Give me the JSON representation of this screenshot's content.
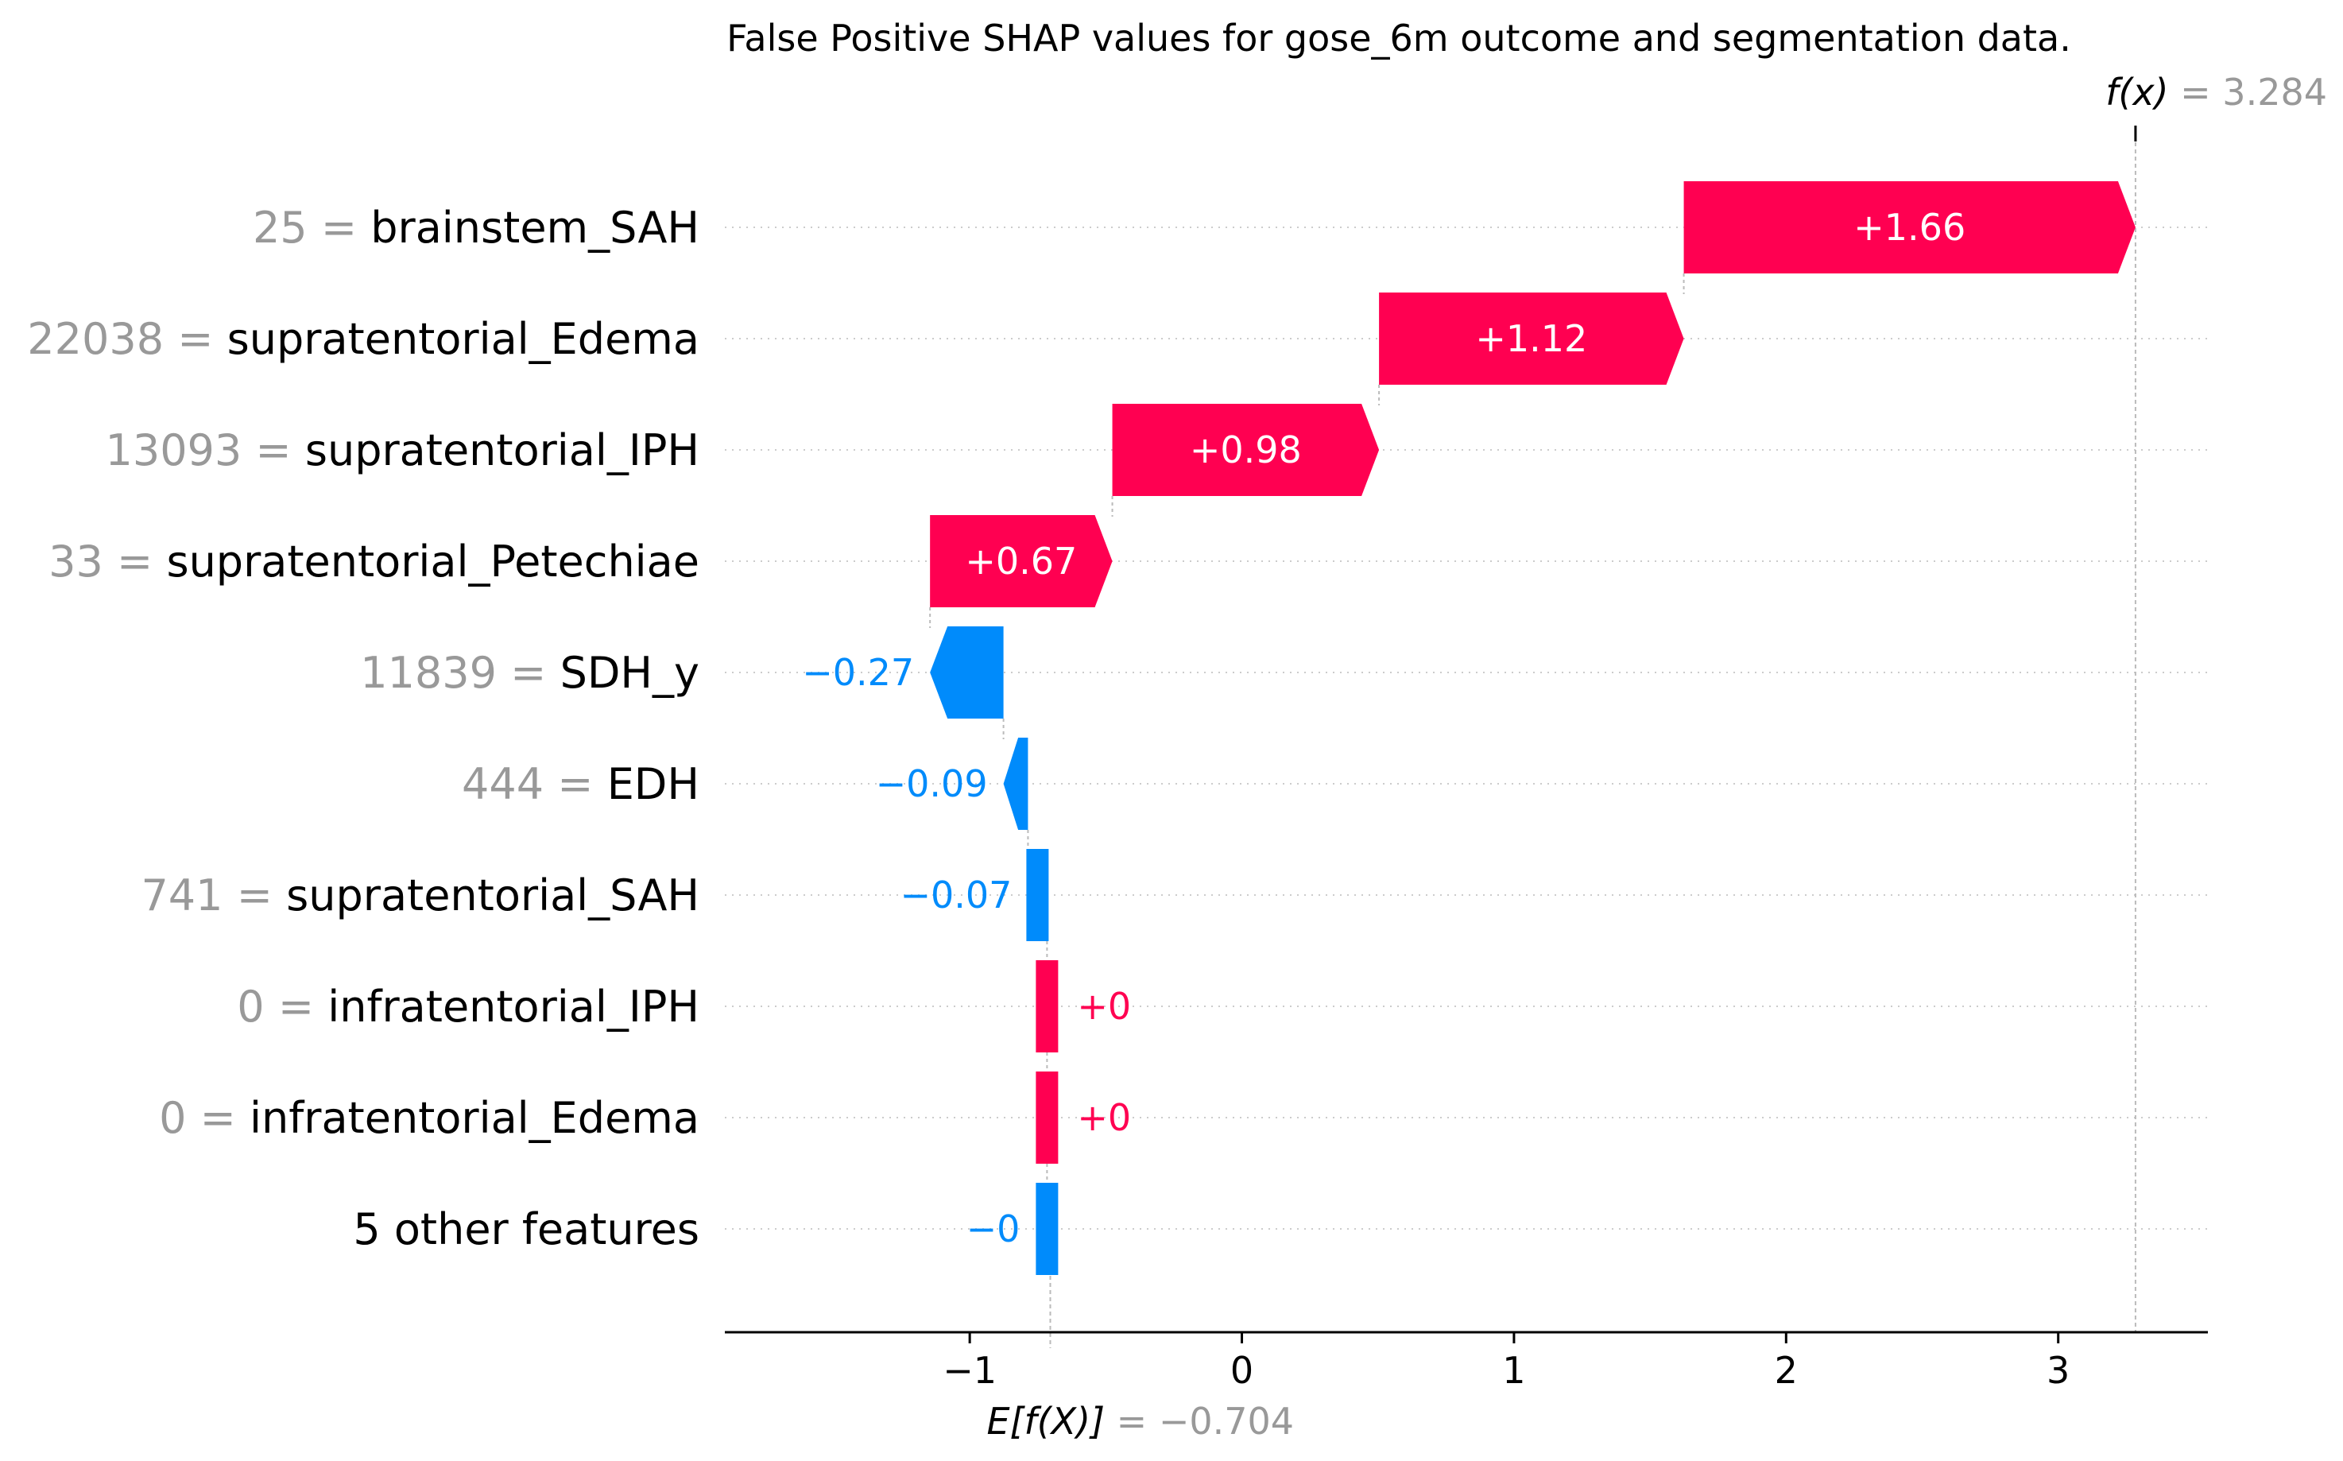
{
  "chart_data": {
    "type": "waterfall",
    "title": "False Positive SHAP values for gose_6m outcome and segmentation data.",
    "base_value": -0.704,
    "fx_value": 3.284,
    "base_label": {
      "prefix": "E[f(X)]",
      "value_text": "= −0.704"
    },
    "fx_label": {
      "prefix": "f(x)",
      "value_text": "= 3.284"
    },
    "xlim": [
      -1.9,
      3.55
    ],
    "xticks": [
      -1,
      0,
      1,
      2,
      3
    ],
    "xtick_labels": [
      "−1",
      "0",
      "1",
      "2",
      "3"
    ],
    "grid": "horizontal dotted",
    "colors": {
      "positive": "#ff0051",
      "negative": "#008bfb",
      "grid": "#cccccc",
      "axis": "#000000",
      "gray_text": "#999999"
    },
    "features": [
      {
        "value": "25",
        "name": "brainstem_SAH",
        "shap": 1.66,
        "label": "+1.66"
      },
      {
        "value": "22038",
        "name": "supratentorial_Edema",
        "shap": 1.12,
        "label": "+1.12"
      },
      {
        "value": "13093",
        "name": "supratentorial_IPH",
        "shap": 0.98,
        "label": "+0.98"
      },
      {
        "value": "33",
        "name": "supratentorial_Petechiae",
        "shap": 0.67,
        "label": "+0.67"
      },
      {
        "value": "11839",
        "name": "SDH_y",
        "shap": -0.27,
        "label": "−0.27"
      },
      {
        "value": "444",
        "name": "EDH",
        "shap": -0.09,
        "label": "−0.09"
      },
      {
        "value": "741",
        "name": "supratentorial_SAH",
        "shap": -0.07,
        "label": "−0.07"
      },
      {
        "value": "0",
        "name": "infratentorial_IPH",
        "shap": 0.0,
        "label": "+0"
      },
      {
        "value": "0",
        "name": "infratentorial_Edema",
        "shap": 0.0,
        "label": "+0"
      },
      {
        "value": "",
        "name": "5 other features",
        "shap": -0.0,
        "label": "−0"
      }
    ]
  }
}
